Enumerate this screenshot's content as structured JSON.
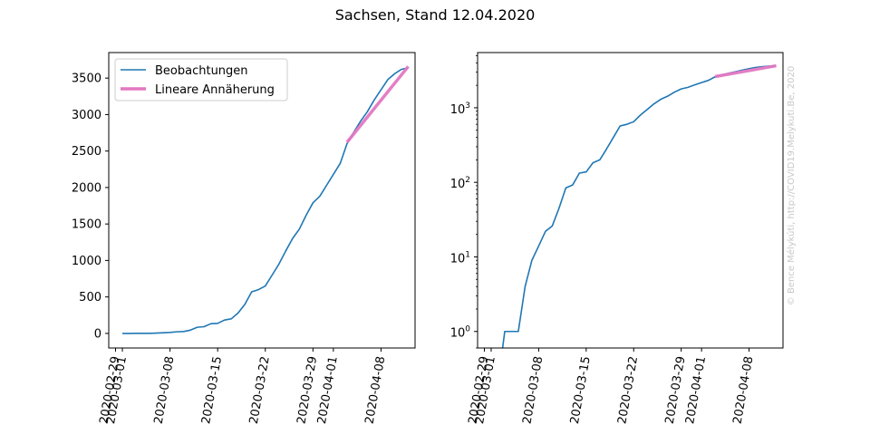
{
  "title": "Sachsen, Stand 12.04.2020",
  "watermark": "© Bence Mélykúti, http://COVID19.Melykuti.Be, 2020",
  "colors": {
    "observations": "#1f77b4",
    "fit": "#e377c2",
    "axes": "#000000",
    "background": "#ffffff"
  },
  "chart_data": [
    {
      "type": "line",
      "yscale": "linear",
      "legend_position": "top-left",
      "grid": false,
      "xlabel": "",
      "ylabel": "",
      "xlim": [
        "2020-02-28",
        "2020-04-13"
      ],
      "ylim": [
        -200,
        3850
      ],
      "x_ticks": [
        "2020-02-29",
        "2020-03-01",
        "2020-03-08",
        "2020-03-15",
        "2020-03-22",
        "2020-03-29",
        "2020-04-01",
        "2020-04-08"
      ],
      "y_ticks": [
        0,
        500,
        1000,
        1500,
        2000,
        2500,
        3000,
        3500
      ],
      "y_tick_labels": [
        "0",
        "500",
        "1000",
        "1500",
        "2000",
        "2500",
        "3000",
        "3500"
      ],
      "series": [
        {
          "name": "Beobachtungen",
          "color": "#1f77b4",
          "x": [
            "2020-03-01",
            "2020-03-02",
            "2020-03-03",
            "2020-03-04",
            "2020-03-05",
            "2020-03-06",
            "2020-03-07",
            "2020-03-08",
            "2020-03-09",
            "2020-03-10",
            "2020-03-11",
            "2020-03-12",
            "2020-03-13",
            "2020-03-14",
            "2020-03-15",
            "2020-03-16",
            "2020-03-17",
            "2020-03-18",
            "2020-03-19",
            "2020-03-20",
            "2020-03-21",
            "2020-03-22",
            "2020-03-23",
            "2020-03-24",
            "2020-03-25",
            "2020-03-26",
            "2020-03-27",
            "2020-03-28",
            "2020-03-29",
            "2020-03-30",
            "2020-03-31",
            "2020-04-01",
            "2020-04-02",
            "2020-04-03",
            "2020-04-04",
            "2020-04-05",
            "2020-04-06",
            "2020-04-07",
            "2020-04-08",
            "2020-04-09",
            "2020-04-10",
            "2020-04-11",
            "2020-04-12"
          ],
          "values": [
            0,
            0,
            1,
            1,
            1,
            4,
            9,
            14,
            22,
            26,
            45,
            84,
            92,
            133,
            138,
            183,
            200,
            280,
            400,
            570,
            600,
            650,
            800,
            950,
            1130,
            1300,
            1430,
            1620,
            1790,
            1880,
            2030,
            2180,
            2330,
            2600,
            2760,
            2910,
            3040,
            3200,
            3340,
            3480,
            3560,
            3620,
            3640
          ]
        },
        {
          "name": "Lineare Annäherung",
          "color": "#e377c2",
          "x": [
            "2020-04-03",
            "2020-04-12"
          ],
          "values": [
            2620,
            3660
          ]
        }
      ]
    },
    {
      "type": "line",
      "yscale": "log",
      "legend_position": "none",
      "grid": false,
      "xlabel": "",
      "ylabel": "",
      "xlim": [
        "2020-02-28",
        "2020-04-13"
      ],
      "ylim": [
        0.6,
        5500
      ],
      "x_ticks": [
        "2020-02-29",
        "2020-03-01",
        "2020-03-08",
        "2020-03-15",
        "2020-03-22",
        "2020-03-29",
        "2020-04-01",
        "2020-04-08"
      ],
      "y_ticks": [
        1,
        10,
        100,
        1000
      ],
      "y_tick_labels": [
        {
          "base": "10",
          "exp": "0"
        },
        {
          "base": "10",
          "exp": "1"
        },
        {
          "base": "10",
          "exp": "2"
        },
        {
          "base": "10",
          "exp": "3"
        }
      ],
      "series": [
        {
          "name": "Beobachtungen",
          "color": "#1f77b4",
          "x": [
            "2020-03-01",
            "2020-03-02",
            "2020-03-03",
            "2020-03-04",
            "2020-03-05",
            "2020-03-06",
            "2020-03-07",
            "2020-03-08",
            "2020-03-09",
            "2020-03-10",
            "2020-03-11",
            "2020-03-12",
            "2020-03-13",
            "2020-03-14",
            "2020-03-15",
            "2020-03-16",
            "2020-03-17",
            "2020-03-18",
            "2020-03-19",
            "2020-03-20",
            "2020-03-21",
            "2020-03-22",
            "2020-03-23",
            "2020-03-24",
            "2020-03-25",
            "2020-03-26",
            "2020-03-27",
            "2020-03-28",
            "2020-03-29",
            "2020-03-30",
            "2020-03-31",
            "2020-04-01",
            "2020-04-02",
            "2020-04-03",
            "2020-04-04",
            "2020-04-05",
            "2020-04-06",
            "2020-04-07",
            "2020-04-08",
            "2020-04-09",
            "2020-04-10",
            "2020-04-11",
            "2020-04-12"
          ],
          "values": [
            0,
            0,
            1,
            1,
            1,
            4,
            9,
            14,
            22,
            26,
            45,
            84,
            92,
            133,
            138,
            183,
            200,
            280,
            400,
            570,
            600,
            650,
            800,
            950,
            1130,
            1300,
            1430,
            1620,
            1790,
            1880,
            2030,
            2180,
            2330,
            2600,
            2760,
            2910,
            3040,
            3200,
            3340,
            3480,
            3560,
            3620,
            3640
          ]
        },
        {
          "name": "Lineare Annäherung",
          "color": "#e377c2",
          "x": [
            "2020-04-03",
            "2020-04-12"
          ],
          "values": [
            2620,
            3660
          ]
        }
      ]
    }
  ]
}
